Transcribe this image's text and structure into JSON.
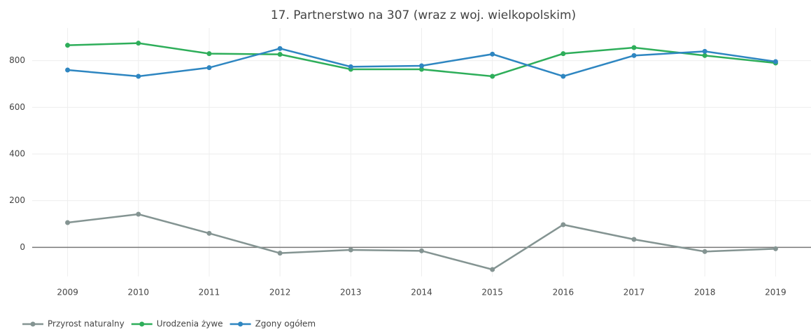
{
  "chart_data": {
    "type": "line",
    "title": "17. Partnerstwo na 307  (wraz z woj. wielkopolskim)",
    "x": [
      2009,
      2010,
      2011,
      2012,
      2013,
      2014,
      2015,
      2016,
      2017,
      2018,
      2019
    ],
    "series": [
      {
        "name": "Przyrost naturalny",
        "color": "#849492",
        "values": [
          106,
          142,
          60,
          -25,
          -11,
          -15,
          -95,
          97,
          34,
          -18,
          -6
        ]
      },
      {
        "name": "Urodzenia żywe",
        "color": "#2eae5a",
        "values": [
          866,
          875,
          830,
          827,
          763,
          763,
          733,
          830,
          856,
          822,
          790
        ]
      },
      {
        "name": "Zgony ogółem",
        "color": "#2e86c1",
        "values": [
          760,
          733,
          770,
          852,
          774,
          778,
          828,
          733,
          822,
          840,
          796
        ]
      }
    ],
    "xlim": [
      2008.5,
      2019.5
    ],
    "xticks": [
      2009,
      2010,
      2011,
      2012,
      2013,
      2014,
      2015,
      2016,
      2017,
      2018,
      2019
    ],
    "ylim": [
      -125,
      940
    ],
    "yticks": [
      0,
      200,
      400,
      600,
      800
    ],
    "grid": true,
    "legend": "bottom-left"
  }
}
